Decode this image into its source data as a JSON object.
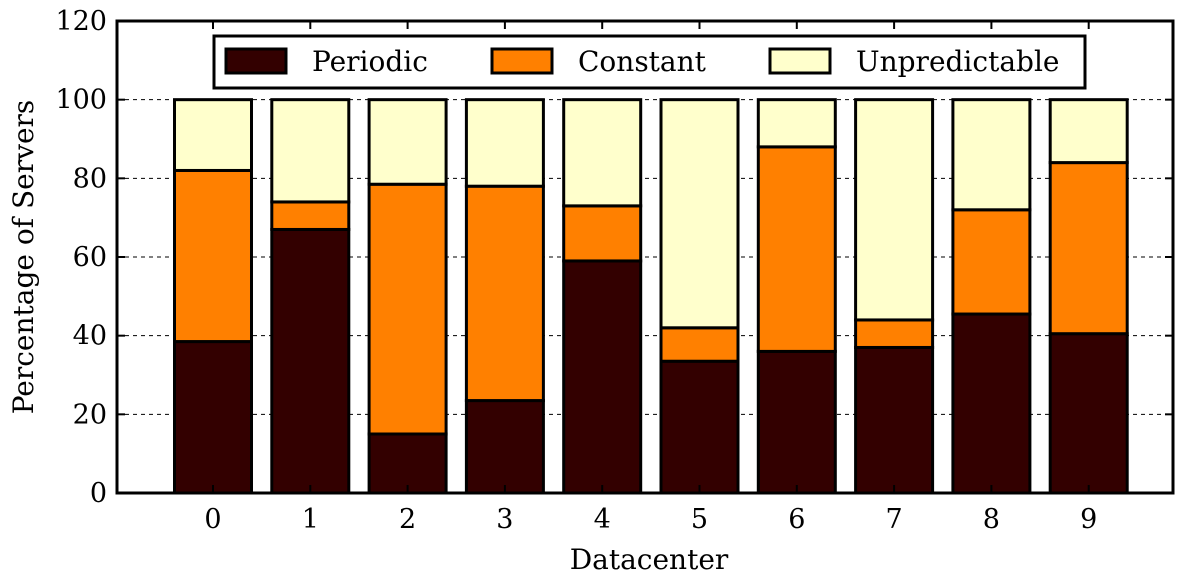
{
  "chart_data": {
    "type": "bar",
    "stacked": true,
    "xlabel": "Datacenter",
    "ylabel": "Percentage of Servers",
    "ylim": [
      0,
      120
    ],
    "yticks": [
      0,
      20,
      40,
      60,
      80,
      100,
      120
    ],
    "categories": [
      "0",
      "1",
      "2",
      "3",
      "4",
      "5",
      "6",
      "7",
      "8",
      "9"
    ],
    "grid": "y-dashed",
    "legend_position": "top-center",
    "series": [
      {
        "name": "Periodic",
        "color": "#330000",
        "values": [
          38.5,
          67,
          15,
          23.5,
          59,
          33.5,
          36,
          37,
          45.5,
          40.5
        ]
      },
      {
        "name": "Constant",
        "color": "#ff8000",
        "values": [
          43.5,
          7,
          63.5,
          54.5,
          14,
          8.5,
          52,
          7,
          26.5,
          43.5
        ]
      },
      {
        "name": "Unpredictable",
        "color": "#ffffcc",
        "values": [
          18,
          26,
          21.5,
          22,
          27,
          58,
          12,
          56,
          28,
          16
        ]
      }
    ]
  }
}
